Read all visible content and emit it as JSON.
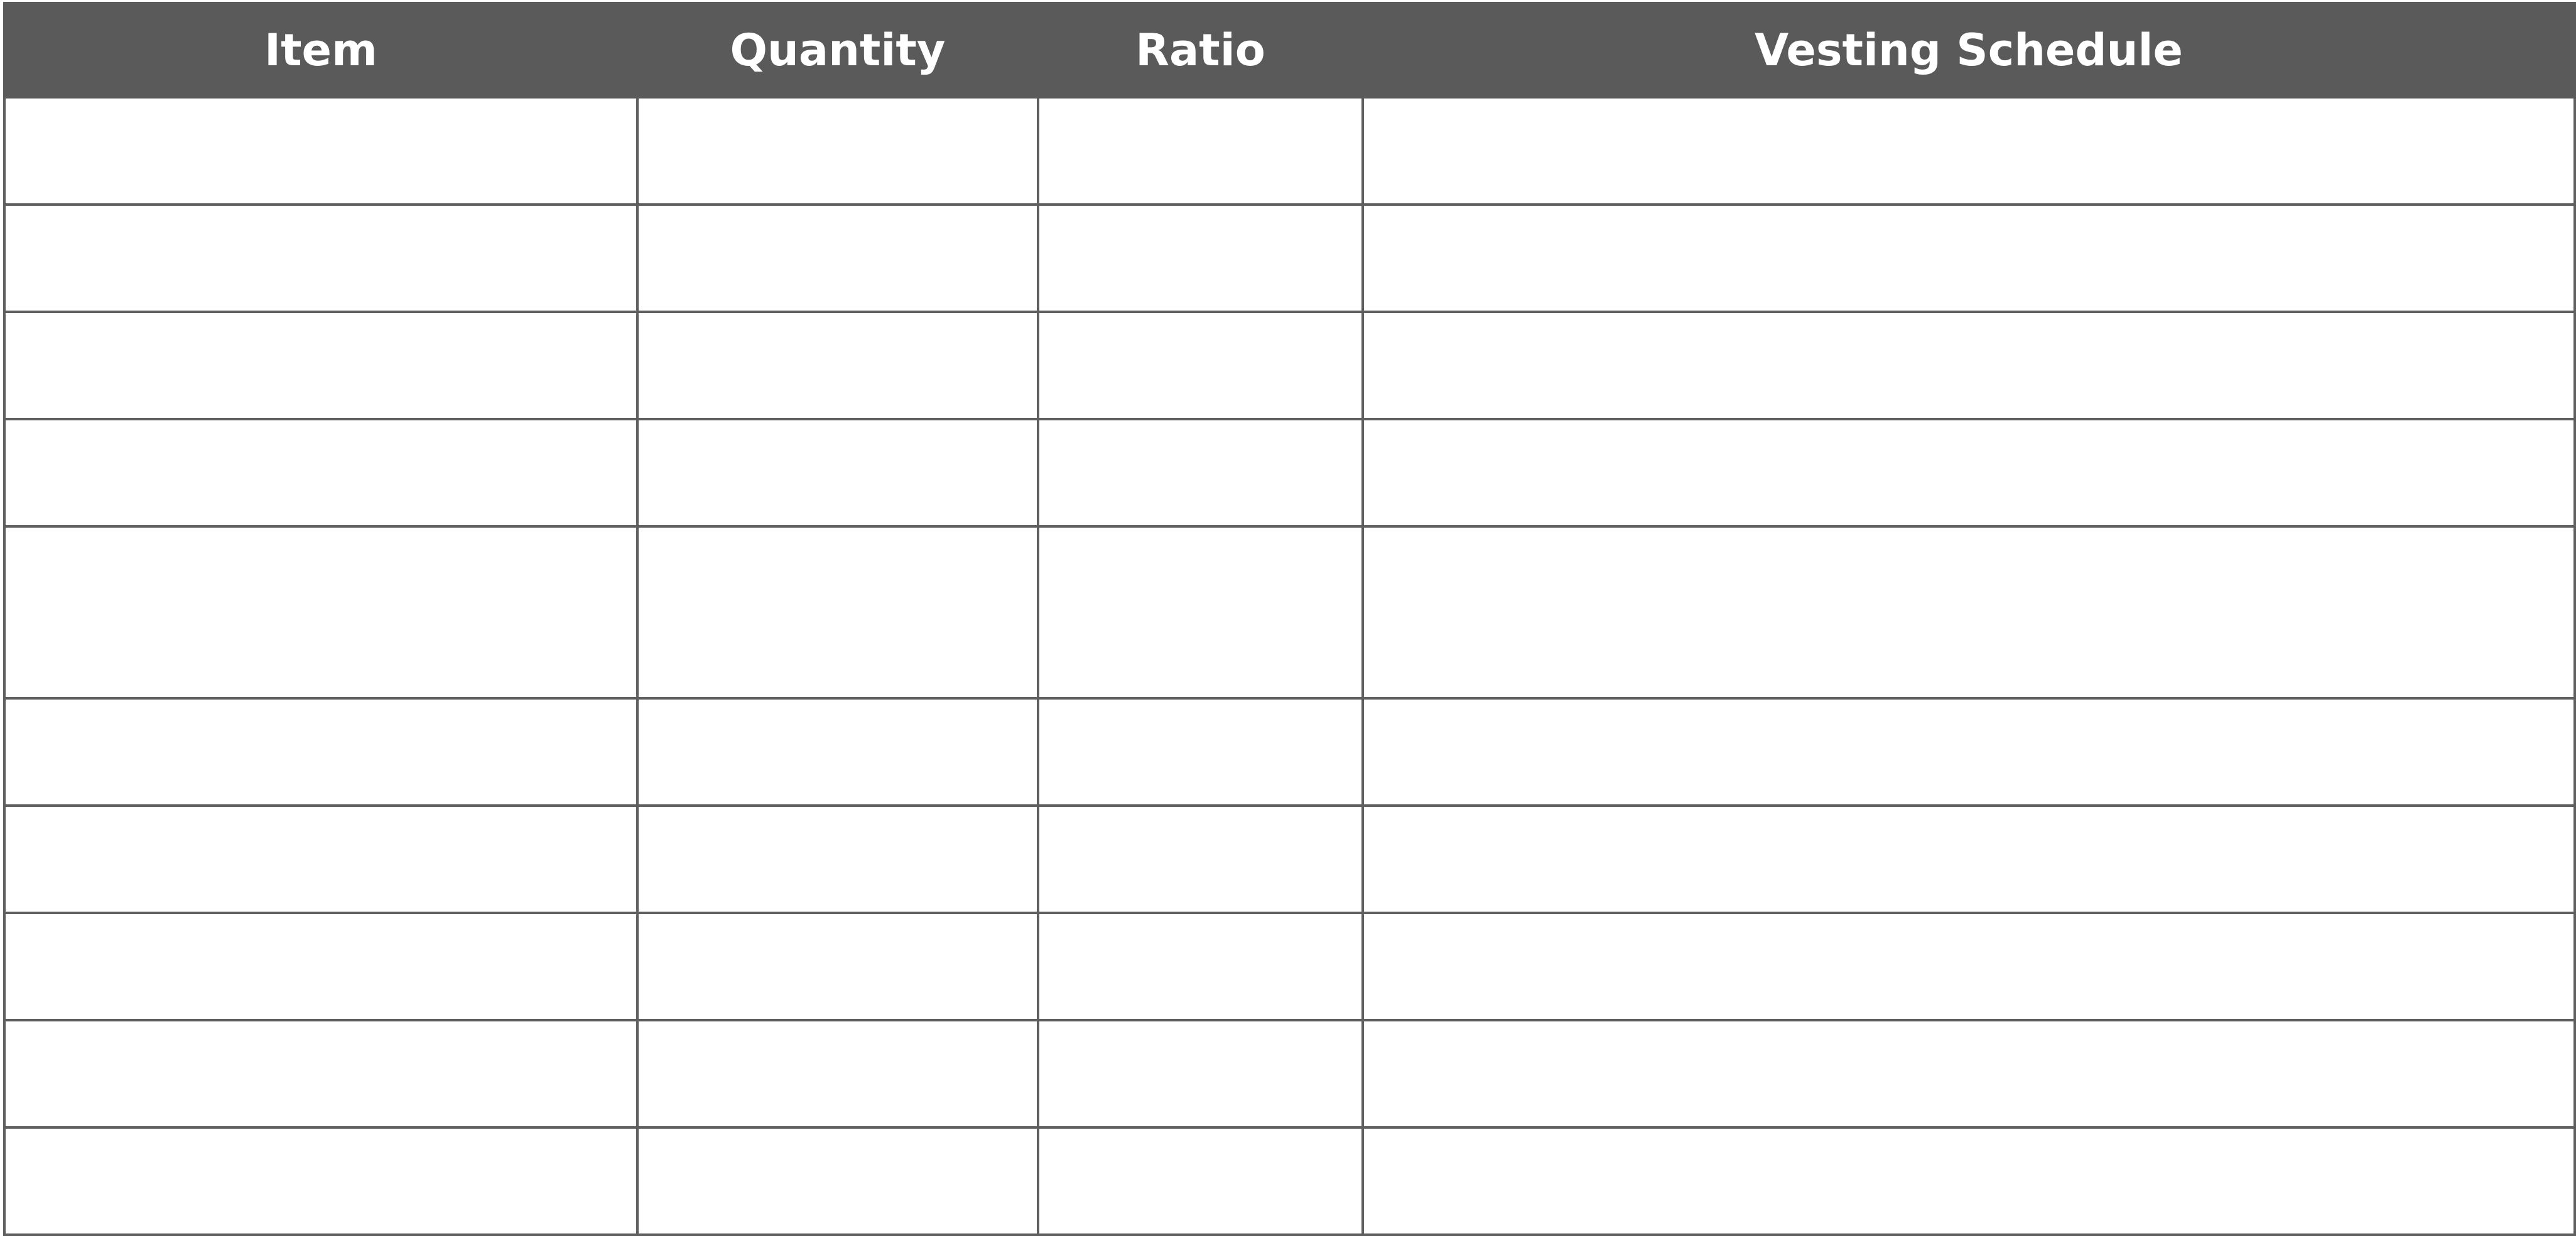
{
  "table": {
    "headers": [
      "Item",
      "Quantity",
      "Ratio",
      "Vesting Schedule"
    ],
    "rows": [
      [
        "",
        "",
        "",
        ""
      ],
      [
        "",
        "",
        "",
        ""
      ],
      [
        "",
        "",
        "",
        ""
      ],
      [
        "",
        "",
        "",
        ""
      ],
      [
        "",
        "",
        "",
        ""
      ],
      [
        "",
        "",
        "",
        ""
      ],
      [
        "",
        "",
        "",
        ""
      ],
      [
        "",
        "",
        "",
        ""
      ],
      [
        "",
        "",
        "",
        ""
      ],
      [
        "",
        "",
        "",
        ""
      ]
    ]
  },
  "colors": {
    "header_background": "#5a5a5a",
    "header_text": "#ffffff",
    "grid_line": "#5f5f5f",
    "cell_background": "#ffffff"
  }
}
